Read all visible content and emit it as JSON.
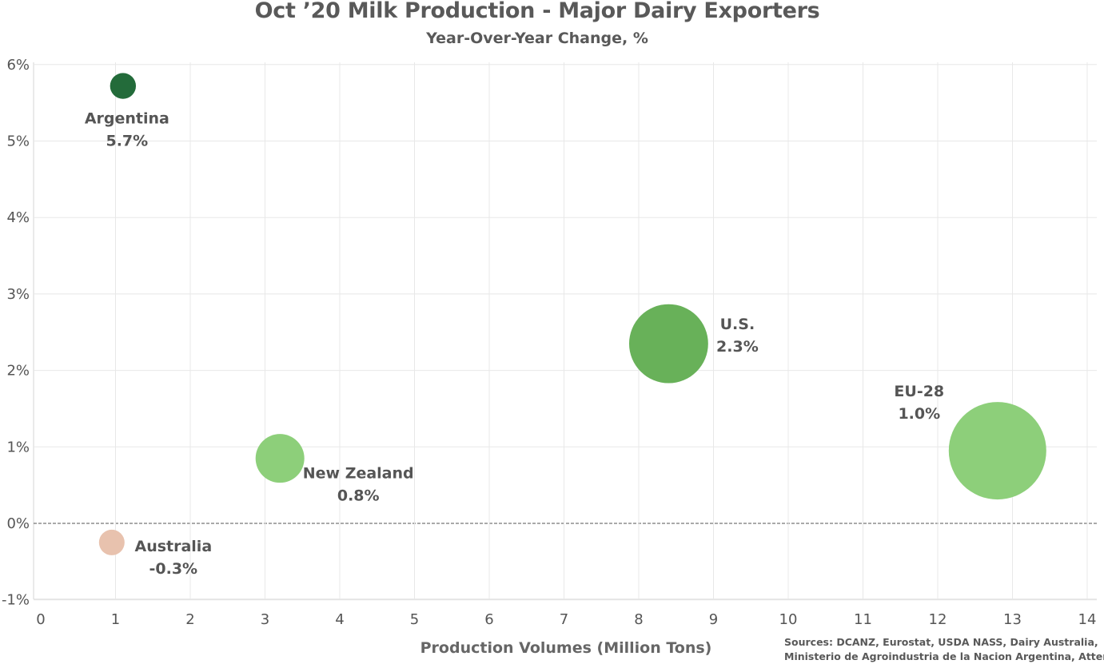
{
  "chart_data": {
    "type": "scatter",
    "title": "Oct ’20 Milk Production - Major Dairy Exporters",
    "subtitle": "Year-Over-Year Change, %",
    "xlabel": "Production Volumes (Million Tons)",
    "ylabel": "",
    "xlim": [
      0,
      14
    ],
    "ylim": [
      -1,
      6
    ],
    "x_ticks": [
      "0",
      "1",
      "2",
      "3",
      "4",
      "5",
      "6",
      "7",
      "8",
      "9",
      "10",
      "11",
      "12",
      "13",
      "14"
    ],
    "y_ticks": [
      "-1%",
      "0%",
      "1%",
      "2%",
      "3%",
      "4%",
      "5%",
      "6%"
    ],
    "grid": true,
    "zero_line": "dashed",
    "points": [
      {
        "name": "Argentina",
        "x": 1.1,
        "y": 5.72,
        "label": "5.7%",
        "color": "#236b3a",
        "size": 0.9
      },
      {
        "name": "U.S.",
        "x": 8.4,
        "y": 2.35,
        "label": "2.3%",
        "color": "#68b159",
        "size": 8.4
      },
      {
        "name": "EU-28",
        "x": 12.8,
        "y": 0.95,
        "label": "1.0%",
        "color": "#8dcf7a",
        "size": 12.8
      },
      {
        "name": "New Zealand",
        "x": 3.2,
        "y": 0.85,
        "label": "0.8%",
        "color": "#8dcf7a",
        "size": 3.2
      },
      {
        "name": "Australia",
        "x": 0.95,
        "y": -0.25,
        "label": "-0.3%",
        "color": "#e8c2ae",
        "size": 0.8
      }
    ]
  },
  "sources": {
    "line1": "Sources: DCANZ, Eurostat, USDA NASS, Dairy Australia,",
    "line2": "Ministerio de Agroindustria de la Nacion Argentina, Atten Babler"
  }
}
